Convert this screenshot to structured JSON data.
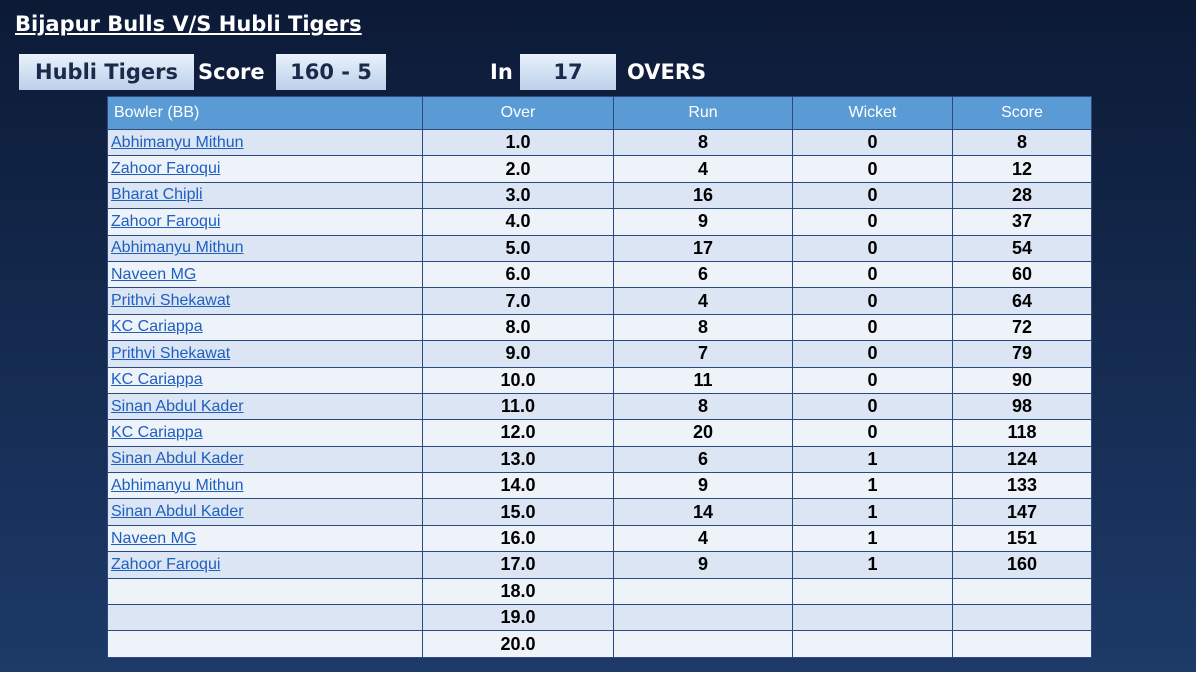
{
  "header": {
    "title": "Bijapur Bulls V/S Hubli Tigers"
  },
  "scorebar": {
    "team": "Hubli Tigers",
    "score_label": "Score",
    "score": "160 - 5",
    "in_label": "In",
    "overs": "17",
    "overs_label": "OVERS"
  },
  "table": {
    "columns": [
      "Bowler (BB)",
      "Over",
      "Run",
      "Wicket",
      "Score"
    ],
    "rows": [
      {
        "bowler": "Abhimanyu Mithun",
        "over": "1.0",
        "run": "8",
        "wicket": "0",
        "score": "8"
      },
      {
        "bowler": "Zahoor Faroqui",
        "over": "2.0",
        "run": "4",
        "wicket": "0",
        "score": "12"
      },
      {
        "bowler": "Bharat Chipli",
        "over": "3.0",
        "run": "16",
        "wicket": "0",
        "score": "28"
      },
      {
        "bowler": "Zahoor Faroqui",
        "over": "4.0",
        "run": "9",
        "wicket": "0",
        "score": "37"
      },
      {
        "bowler": "Abhimanyu Mithun",
        "over": "5.0",
        "run": "17",
        "wicket": "0",
        "score": "54"
      },
      {
        "bowler": "Naveen MG",
        "over": "6.0",
        "run": "6",
        "wicket": "0",
        "score": "60"
      },
      {
        "bowler": "Prithvi Shekawat",
        "over": "7.0",
        "run": "4",
        "wicket": "0",
        "score": "64"
      },
      {
        "bowler": "KC Cariappa",
        "over": "8.0",
        "run": "8",
        "wicket": "0",
        "score": "72"
      },
      {
        "bowler": "Prithvi Shekawat",
        "over": "9.0",
        "run": "7",
        "wicket": "0",
        "score": "79"
      },
      {
        "bowler": "KC Cariappa",
        "over": "10.0",
        "run": "11",
        "wicket": "0",
        "score": "90"
      },
      {
        "bowler": "Sinan Abdul Kader",
        "over": "11.0",
        "run": "8",
        "wicket": "0",
        "score": "98"
      },
      {
        "bowler": "KC Cariappa",
        "over": "12.0",
        "run": "20",
        "wicket": "0",
        "score": "118"
      },
      {
        "bowler": "Sinan Abdul Kader",
        "over": "13.0",
        "run": "6",
        "wicket": "1",
        "score": "124"
      },
      {
        "bowler": "Abhimanyu Mithun",
        "over": "14.0",
        "run": "9",
        "wicket": "1",
        "score": "133"
      },
      {
        "bowler": "Sinan Abdul Kader",
        "over": "15.0",
        "run": "14",
        "wicket": "1",
        "score": "147"
      },
      {
        "bowler": "Naveen MG",
        "over": "16.0",
        "run": "4",
        "wicket": "1",
        "score": "151"
      },
      {
        "bowler": "Zahoor Faroqui",
        "over": "17.0",
        "run": "9",
        "wicket": "1",
        "score": "160"
      },
      {
        "over": "18.0"
      },
      {
        "over": "19.0"
      },
      {
        "over": "20.0"
      }
    ]
  }
}
